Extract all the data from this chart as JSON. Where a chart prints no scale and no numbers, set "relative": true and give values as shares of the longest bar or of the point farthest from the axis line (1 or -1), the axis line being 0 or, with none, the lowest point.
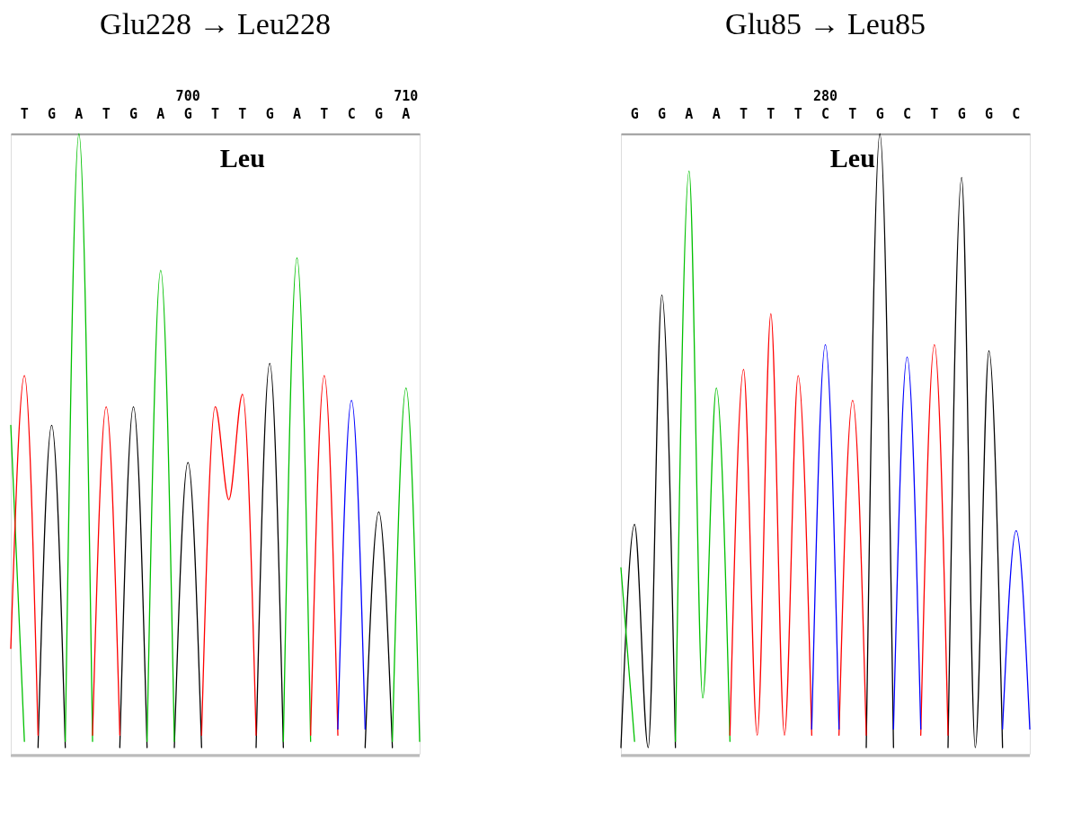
{
  "chart_data": [
    {
      "type": "line",
      "title": "Glu228 → Leu228",
      "relative": true,
      "grid": false,
      "marker": "none",
      "line_style": "solid",
      "categories": [
        null,
        "T",
        null,
        "G",
        null,
        "A",
        null,
        "T",
        null,
        "G",
        null,
        "A",
        null,
        "G",
        null,
        "T",
        null,
        "T",
        null,
        "G",
        null,
        "A",
        null,
        "T",
        null,
        "C",
        null,
        "G",
        null,
        "A",
        null
      ],
      "annotations": [
        "700",
        "710",
        "Leu"
      ],
      "series": [
        {
          "color": "#000000",
          "values": [
            null,
            null,
            0.01,
            0.53,
            0.01,
            null,
            null,
            null,
            0.01,
            0.56,
            0.01,
            null,
            0.01,
            0.47,
            0.01,
            null,
            null,
            null,
            0.01,
            0.63,
            0.01,
            null,
            null,
            null,
            null,
            null,
            0.01,
            0.39,
            0.01,
            null,
            null
          ]
        },
        {
          "color": "#00c000",
          "values": [
            0.53,
            0.02,
            null,
            null,
            0.02,
            1.0,
            0.02,
            null,
            null,
            null,
            0.02,
            0.78,
            0.02,
            null,
            null,
            null,
            null,
            null,
            null,
            null,
            0.02,
            0.8,
            0.02,
            null,
            null,
            null,
            null,
            null,
            0.02,
            0.59,
            0.02
          ]
        },
        {
          "color": "#ff0000",
          "values": [
            0.17,
            0.61,
            0.03,
            null,
            null,
            null,
            0.03,
            0.56,
            0.03,
            null,
            null,
            null,
            null,
            null,
            0.03,
            0.56,
            0.41,
            0.58,
            0.03,
            null,
            null,
            null,
            0.03,
            0.61,
            0.03,
            null,
            null,
            null,
            null,
            null,
            null
          ]
        },
        {
          "color": "#0000ff",
          "values": [
            null,
            null,
            null,
            null,
            null,
            null,
            null,
            null,
            null,
            null,
            null,
            null,
            null,
            null,
            null,
            null,
            null,
            null,
            null,
            null,
            null,
            null,
            null,
            null,
            0.04,
            0.57,
            0.04,
            null,
            null,
            null,
            null
          ]
        }
      ]
    },
    {
      "type": "line",
      "title": "Glu85 → Leu85",
      "relative": true,
      "grid": false,
      "marker": "none",
      "line_style": "solid",
      "categories": [
        null,
        "G",
        null,
        "G",
        null,
        "A",
        null,
        "A",
        null,
        "T",
        null,
        "T",
        null,
        "T",
        null,
        "C",
        null,
        "T",
        null,
        "G",
        null,
        "C",
        null,
        "T",
        null,
        "G",
        null,
        "G",
        null,
        "C",
        null
      ],
      "annotations": [
        "280",
        "Leu"
      ],
      "series": [
        {
          "color": "#000000",
          "values": [
            0.01,
            0.37,
            0.01,
            0.74,
            0.01,
            null,
            null,
            null,
            null,
            null,
            null,
            null,
            null,
            null,
            null,
            null,
            null,
            null,
            0.01,
            1.0,
            0.01,
            null,
            null,
            null,
            0.01,
            0.93,
            0.01,
            0.65,
            0.01,
            null,
            null
          ]
        },
        {
          "color": "#00c000",
          "values": [
            0.3,
            0.02,
            null,
            null,
            0.02,
            0.94,
            0.09,
            0.59,
            0.02,
            null,
            null,
            null,
            null,
            null,
            null,
            null,
            null,
            null,
            null,
            null,
            null,
            null,
            null,
            null,
            null,
            null,
            null,
            null,
            null,
            null,
            null
          ]
        },
        {
          "color": "#ff0000",
          "values": [
            null,
            null,
            null,
            null,
            null,
            null,
            null,
            null,
            0.03,
            0.62,
            0.03,
            0.71,
            0.03,
            0.61,
            0.03,
            null,
            0.03,
            0.57,
            0.03,
            null,
            null,
            null,
            0.03,
            0.66,
            0.03,
            null,
            null,
            null,
            null,
            null,
            null
          ]
        },
        {
          "color": "#0000ff",
          "values": [
            null,
            null,
            null,
            null,
            null,
            null,
            null,
            null,
            null,
            null,
            null,
            null,
            null,
            null,
            0.04,
            0.66,
            0.04,
            null,
            null,
            null,
            0.04,
            0.64,
            0.04,
            null,
            null,
            null,
            null,
            null,
            0.04,
            0.36,
            0.04
          ]
        }
      ]
    }
  ]
}
